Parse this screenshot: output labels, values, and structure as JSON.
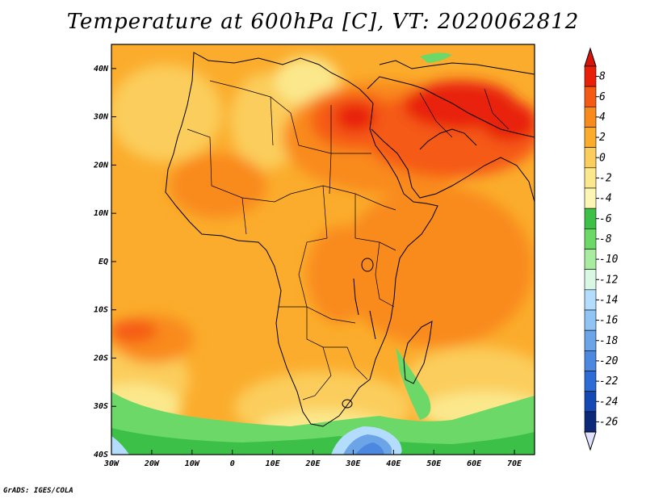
{
  "title": "Temperature at 600hPa [C], VT: 2020062812",
  "credit": "GrADS: IGES/COLA",
  "map": {
    "lon_range": [
      -30,
      75
    ],
    "lat_range": [
      -40,
      45
    ],
    "lon_ticks": [
      {
        "value": -30,
        "label": "30W"
      },
      {
        "value": -20,
        "label": "20W"
      },
      {
        "value": -10,
        "label": "10W"
      },
      {
        "value": 0,
        "label": "0"
      },
      {
        "value": 10,
        "label": "10E"
      },
      {
        "value": 20,
        "label": "20E"
      },
      {
        "value": 30,
        "label": "30E"
      },
      {
        "value": 40,
        "label": "40E"
      },
      {
        "value": 50,
        "label": "50E"
      },
      {
        "value": 60,
        "label": "60E"
      },
      {
        "value": 70,
        "label": "70E"
      }
    ],
    "lat_ticks": [
      {
        "value": 40,
        "label": "40N"
      },
      {
        "value": 30,
        "label": "30N"
      },
      {
        "value": 20,
        "label": "20N"
      },
      {
        "value": 10,
        "label": "10N"
      },
      {
        "value": 0,
        "label": "EQ"
      },
      {
        "value": -10,
        "label": "10S"
      },
      {
        "value": -20,
        "label": "20S"
      },
      {
        "value": -30,
        "label": "30S"
      },
      {
        "value": -40,
        "label": "40S"
      }
    ]
  },
  "colorbar": {
    "labels": [
      "8",
      "6",
      "4",
      "2",
      "0",
      "-2",
      "-4",
      "-6",
      "-8",
      "-10",
      "-12",
      "-14",
      "-16",
      "-18",
      "-20",
      "-22",
      "-24",
      "-26"
    ],
    "colors": [
      "#e8200a",
      "#f55a14",
      "#f98a1c",
      "#fbac2c",
      "#fbcd5c",
      "#fbe88c",
      "#fdf5b4",
      "#3cc048",
      "#6cd868",
      "#a8eca0",
      "#d8f8e4",
      "#b4dcfc",
      "#90c4f4",
      "#6ca4e8",
      "#4c88e0",
      "#2c6cd4",
      "#1448b4",
      "#0c2878"
    ],
    "top_triangle_color": "#d8140a",
    "bottom_triangle_color": "#e0e0ff"
  }
}
